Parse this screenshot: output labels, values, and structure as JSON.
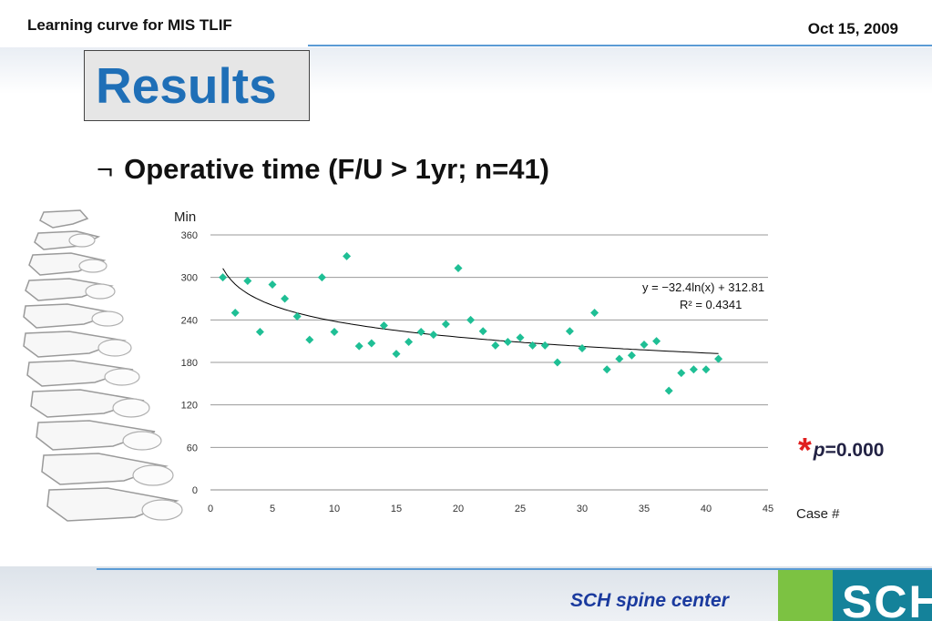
{
  "header": {
    "left_title": "Learning curve for MIS TLIF",
    "date": "Oct 15, 2009"
  },
  "slide": {
    "title": "Results",
    "bullet_glyph": "¬",
    "bullet_text": "Operative time (F/U > 1yr; n=41)",
    "p_note": {
      "star": "*",
      "p_symbol": "p",
      "p_rest": "=0.000"
    },
    "footer": "SCH spine center",
    "logo_text": "SCH"
  },
  "colors": {
    "title_blue": "#1f6fb7",
    "marker": "#1fbf95",
    "accent_rule": "#5b9bd5",
    "logo_green": "#7cc242",
    "logo_teal": "#14829a",
    "footer_blue": "#1a3a9e",
    "star_red": "#e02020"
  },
  "chart_data": {
    "type": "scatter",
    "ylabel": "Min",
    "xlabel": "Case #",
    "xlim": [
      0,
      45
    ],
    "ylim": [
      0,
      360
    ],
    "xticks": [
      0,
      5,
      10,
      15,
      20,
      25,
      30,
      35,
      40,
      45
    ],
    "yticks": [
      0,
      60,
      120,
      180,
      240,
      300,
      360
    ],
    "grid": "horizontal",
    "x": [
      1,
      2,
      3,
      4,
      5,
      6,
      7,
      8,
      9,
      10,
      11,
      12,
      13,
      14,
      15,
      16,
      17,
      18,
      19,
      20,
      21,
      22,
      23,
      24,
      25,
      26,
      27,
      28,
      29,
      30,
      31,
      32,
      33,
      34,
      35,
      36,
      37,
      38,
      39,
      40,
      41
    ],
    "y": [
      300,
      250,
      295,
      223,
      290,
      270,
      245,
      212,
      300,
      223,
      330,
      203,
      207,
      232,
      192,
      209,
      223,
      219,
      234,
      313,
      240,
      224,
      204,
      209,
      215,
      204,
      204,
      180,
      224,
      200,
      250,
      170,
      185,
      190,
      205,
      210,
      140,
      165,
      170,
      170,
      185
    ],
    "trendline": {
      "type": "logarithmic",
      "a": -32.4,
      "b": 312.81,
      "x_range": [
        1,
        41
      ],
      "equation_label": "y = −32.4ln(x) + 312.81",
      "r2_label": "R² = 0.4341"
    }
  }
}
